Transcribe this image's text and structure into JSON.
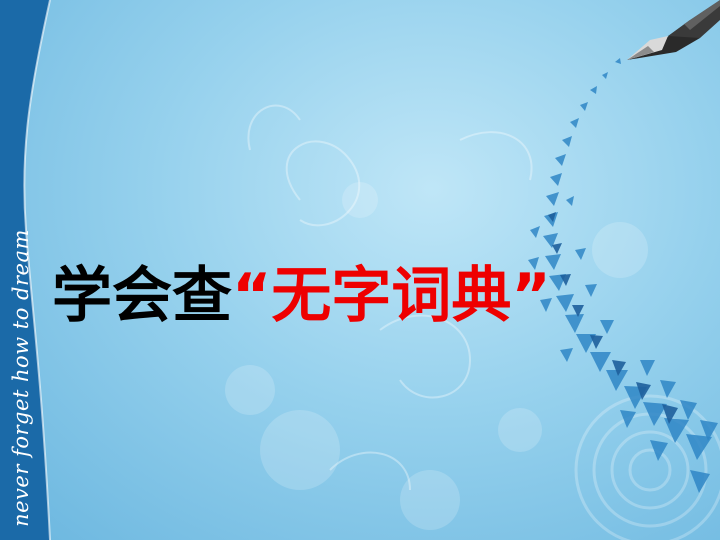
{
  "slide": {
    "side_text": "never forget  how to dream",
    "title": {
      "prefix": "学会查",
      "quoted": "“无字词典”"
    }
  },
  "colors": {
    "background_light": "#bfe6f7",
    "background_dark": "#6ab6df",
    "side_band": "#1b6aa8",
    "title_prefix": "#000000",
    "title_quoted": "#ee0000"
  },
  "icons": [
    "fountain-pen-icon"
  ]
}
